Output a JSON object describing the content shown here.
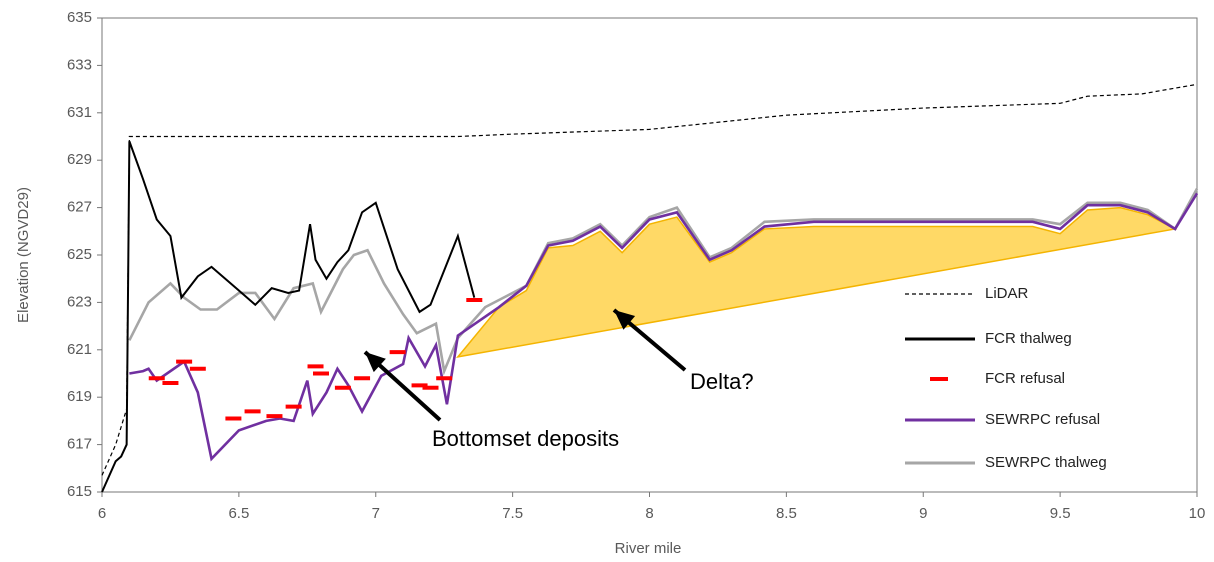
{
  "chart_data": {
    "type": "line",
    "x_label": "River mile",
    "y_label": "Elevation (NGVD29)",
    "xlim": [
      6,
      10
    ],
    "xticks": [
      6,
      6.5,
      7,
      7.5,
      8,
      8.5,
      9,
      9.5,
      10
    ],
    "ylim": [
      615,
      635
    ],
    "yticks": [
      615,
      617,
      619,
      621,
      623,
      625,
      627,
      629,
      631,
      633,
      635
    ],
    "grid": false,
    "legend": "lower right",
    "series": [
      {
        "name": "LiDAR",
        "color": "#000000",
        "style": "dashed",
        "x": [
          6.0,
          6.05,
          6.09,
          6.1,
          6.5,
          7.0,
          7.3,
          7.5,
          8.0,
          8.5,
          9.0,
          9.5,
          9.6,
          9.8,
          10.0
        ],
        "values": [
          615.7,
          617,
          618.5,
          630,
          630,
          630,
          630,
          630.1,
          630.3,
          630.9,
          631.2,
          631.4,
          631.7,
          631.8,
          632.2
        ]
      },
      {
        "name": "FCR thalweg",
        "color": "#000000",
        "style": "solid",
        "x": [
          6.0,
          6.05,
          6.07,
          6.09,
          6.1,
          6.15,
          6.2,
          6.25,
          6.29,
          6.35,
          6.4,
          6.5,
          6.56,
          6.62,
          6.68,
          6.72,
          6.76,
          6.78,
          6.82,
          6.86,
          6.9,
          6.95,
          7.0,
          7.08,
          7.16,
          7.2,
          7.3,
          7.36
        ],
        "values": [
          615,
          616.3,
          616.5,
          617,
          629.8,
          628.2,
          626.5,
          625.8,
          623.2,
          624.1,
          624.5,
          623.5,
          622.9,
          623.6,
          623.4,
          623.5,
          626.3,
          624.8,
          624,
          624.7,
          625.2,
          626.8,
          627.2,
          624.4,
          622.6,
          622.9,
          625.8,
          623.2
        ]
      },
      {
        "name": "FCR refusal",
        "color": "#ff0000",
        "style": "marker",
        "x": [
          6.2,
          6.25,
          6.3,
          6.35,
          6.48,
          6.55,
          6.63,
          6.7,
          6.78,
          6.8,
          6.88,
          6.95,
          7.08,
          7.16,
          7.2,
          7.25,
          7.36
        ],
        "values": [
          619.8,
          619.6,
          620.5,
          620.2,
          618.1,
          618.4,
          618.2,
          618.6,
          620.3,
          620,
          619.4,
          619.8,
          620.9,
          619.5,
          619.4,
          619.8,
          623.1
        ]
      },
      {
        "name": "SEWRPC refusal",
        "color": "#7030a0",
        "style": "solid",
        "x": [
          6.1,
          6.15,
          6.17,
          6.2,
          6.3,
          6.35,
          6.4,
          6.5,
          6.6,
          6.65,
          6.7,
          6.75,
          6.77,
          6.82,
          6.86,
          6.9,
          6.95,
          7.02,
          7.1,
          7.12,
          7.18,
          7.22,
          7.26,
          7.3,
          7.45,
          7.55,
          7.63,
          7.72,
          7.82,
          7.9,
          8.0,
          8.1,
          8.22,
          8.3,
          8.42,
          8.6,
          9.0,
          9.4,
          9.5,
          9.6,
          9.72,
          9.82,
          9.92,
          10.0
        ],
        "values": [
          620,
          620.1,
          620.2,
          619.7,
          620.5,
          619.2,
          616.4,
          617.6,
          618,
          618.1,
          618,
          619.7,
          618.3,
          619.2,
          620.2,
          619.5,
          618.4,
          619.9,
          620.4,
          621.5,
          620.3,
          621.2,
          618.7,
          621.6,
          622.8,
          623.7,
          625.4,
          625.6,
          626.2,
          625.3,
          626.5,
          626.8,
          624.8,
          625.2,
          626.2,
          626.4,
          626.4,
          626.4,
          626.1,
          627.1,
          627.1,
          626.8,
          626.1,
          627.6
        ]
      },
      {
        "name": "SEWRPC thalweg",
        "color": "#a6a6a6",
        "style": "solid",
        "x": [
          6.1,
          6.17,
          6.25,
          6.3,
          6.36,
          6.42,
          6.5,
          6.56,
          6.63,
          6.7,
          6.77,
          6.8,
          6.88,
          6.92,
          6.97,
          7.03,
          7.1,
          7.15,
          7.22,
          7.25,
          7.3,
          7.4,
          7.55,
          7.63,
          7.72,
          7.82,
          7.9,
          8.0,
          8.1,
          8.22,
          8.3,
          8.42,
          8.6,
          9.0,
          9.4,
          9.5,
          9.6,
          9.72,
          9.82,
          9.92,
          10.0
        ],
        "values": [
          621.4,
          623,
          623.8,
          623.2,
          622.7,
          622.7,
          623.4,
          623.4,
          622.3,
          623.6,
          623.8,
          622.6,
          624.4,
          625,
          625.2,
          623.8,
          622.5,
          621.7,
          622.1,
          620.1,
          621.5,
          622.8,
          623.7,
          625.5,
          625.7,
          626.3,
          625.4,
          626.6,
          627,
          624.9,
          625.3,
          626.4,
          626.5,
          626.5,
          626.5,
          626.3,
          627.2,
          627.2,
          626.9,
          626.1,
          627.8
        ]
      }
    ],
    "area": {
      "color": "#ffd966",
      "edge": "#f4b400",
      "x": [
        7.3,
        7.45,
        7.55,
        7.63,
        7.72,
        7.82,
        7.9,
        8.0,
        8.1,
        8.22,
        8.3,
        8.42,
        8.6,
        9.0,
        9.4,
        9.5,
        9.6,
        9.72,
        9.82,
        9.92,
        7.3
      ],
      "values": [
        620.7,
        622.8,
        623.5,
        625.3,
        625.4,
        626.0,
        625.1,
        626.3,
        626.6,
        624.7,
        625.1,
        626.1,
        626.2,
        626.2,
        626.2,
        625.9,
        626.9,
        627.0,
        626.7,
        626.1,
        620.7
      ]
    },
    "annotations": [
      "Bottomset deposits",
      "Delta?"
    ]
  }
}
